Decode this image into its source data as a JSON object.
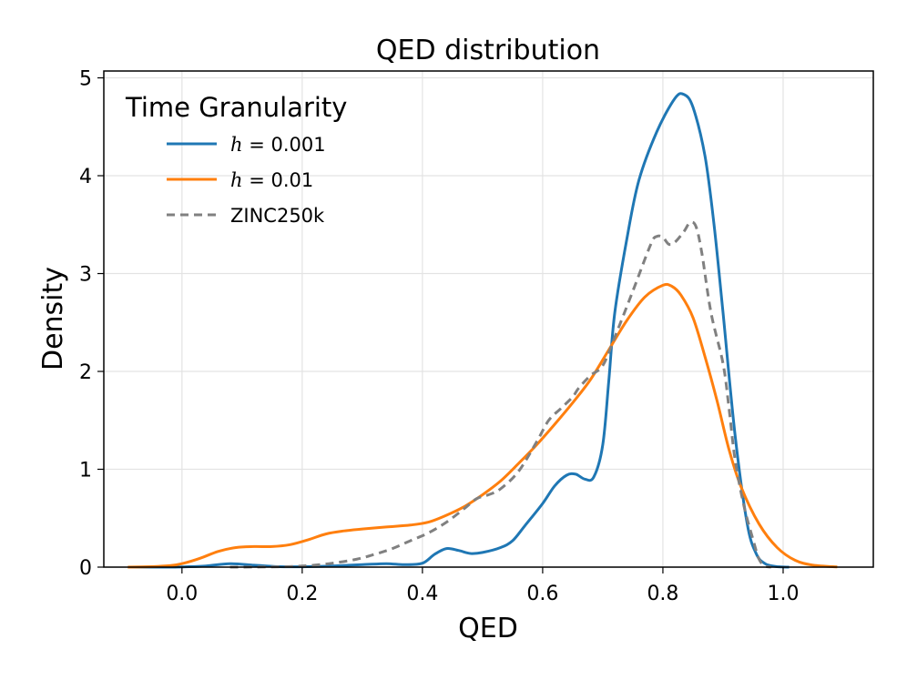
{
  "chart_data": {
    "type": "line",
    "title": "QED distribution",
    "xlabel": "QED",
    "ylabel": "Density",
    "xlim": [
      -0.13,
      1.15
    ],
    "ylim": [
      0,
      5.07
    ],
    "xticks": [
      0.0,
      0.2,
      0.4,
      0.6,
      0.8,
      1.0
    ],
    "xtick_labels": [
      "0.0",
      "0.2",
      "0.4",
      "0.6",
      "0.8",
      "1.0"
    ],
    "yticks": [
      0,
      1,
      2,
      3,
      4,
      5
    ],
    "ytick_labels": [
      "0",
      "1",
      "2",
      "3",
      "4",
      "5"
    ],
    "grid": true,
    "legend": {
      "title": "Time Granularity",
      "position": "top-left",
      "entries": [
        {
          "prefix": "h",
          "suffix": " = 0.001"
        },
        {
          "prefix": "h",
          "suffix": " = 0.01"
        },
        {
          "prefix": "",
          "suffix": "ZINC250k"
        }
      ]
    },
    "series": [
      {
        "name": "h = 0.001",
        "color": "#1f77b4",
        "dash": "",
        "points": [
          [
            -0.09,
            0
          ],
          [
            -0.02,
            0
          ],
          [
            0.0,
            0.003
          ],
          [
            0.04,
            0.012
          ],
          [
            0.08,
            0.035
          ],
          [
            0.12,
            0.02
          ],
          [
            0.16,
            0.005
          ],
          [
            0.2,
            0.004
          ],
          [
            0.25,
            0.012
          ],
          [
            0.3,
            0.025
          ],
          [
            0.34,
            0.035
          ],
          [
            0.37,
            0.025
          ],
          [
            0.4,
            0.04
          ],
          [
            0.42,
            0.13
          ],
          [
            0.44,
            0.19
          ],
          [
            0.46,
            0.17
          ],
          [
            0.48,
            0.14
          ],
          [
            0.5,
            0.15
          ],
          [
            0.53,
            0.2
          ],
          [
            0.55,
            0.27
          ],
          [
            0.57,
            0.42
          ],
          [
            0.6,
            0.65
          ],
          [
            0.62,
            0.83
          ],
          [
            0.64,
            0.94
          ],
          [
            0.655,
            0.95
          ],
          [
            0.67,
            0.9
          ],
          [
            0.685,
            0.92
          ],
          [
            0.7,
            1.25
          ],
          [
            0.71,
            1.9
          ],
          [
            0.72,
            2.6
          ],
          [
            0.74,
            3.35
          ],
          [
            0.76,
            3.95
          ],
          [
            0.79,
            4.45
          ],
          [
            0.82,
            4.79
          ],
          [
            0.835,
            4.83
          ],
          [
            0.85,
            4.7
          ],
          [
            0.87,
            4.2
          ],
          [
            0.885,
            3.5
          ],
          [
            0.9,
            2.6
          ],
          [
            0.92,
            1.35
          ],
          [
            0.94,
            0.45
          ],
          [
            0.955,
            0.14
          ],
          [
            0.97,
            0.035
          ],
          [
            0.99,
            0.005
          ],
          [
            1.01,
            0
          ]
        ]
      },
      {
        "name": "h = 0.01",
        "color": "#ff7f0e",
        "dash": "",
        "points": [
          [
            -0.09,
            0
          ],
          [
            -0.05,
            0.005
          ],
          [
            -0.02,
            0.015
          ],
          [
            0.0,
            0.035
          ],
          [
            0.03,
            0.09
          ],
          [
            0.06,
            0.16
          ],
          [
            0.09,
            0.2
          ],
          [
            0.12,
            0.21
          ],
          [
            0.15,
            0.21
          ],
          [
            0.18,
            0.23
          ],
          [
            0.21,
            0.28
          ],
          [
            0.24,
            0.34
          ],
          [
            0.27,
            0.37
          ],
          [
            0.3,
            0.39
          ],
          [
            0.34,
            0.41
          ],
          [
            0.38,
            0.43
          ],
          [
            0.41,
            0.46
          ],
          [
            0.44,
            0.53
          ],
          [
            0.47,
            0.62
          ],
          [
            0.5,
            0.74
          ],
          [
            0.53,
            0.88
          ],
          [
            0.56,
            1.06
          ],
          [
            0.59,
            1.25
          ],
          [
            0.62,
            1.46
          ],
          [
            0.65,
            1.68
          ],
          [
            0.68,
            1.92
          ],
          [
            0.71,
            2.22
          ],
          [
            0.74,
            2.52
          ],
          [
            0.77,
            2.76
          ],
          [
            0.8,
            2.88
          ],
          [
            0.815,
            2.87
          ],
          [
            0.83,
            2.78
          ],
          [
            0.85,
            2.55
          ],
          [
            0.87,
            2.15
          ],
          [
            0.89,
            1.7
          ],
          [
            0.91,
            1.2
          ],
          [
            0.93,
            0.82
          ],
          [
            0.96,
            0.44
          ],
          [
            0.99,
            0.2
          ],
          [
            1.02,
            0.07
          ],
          [
            1.05,
            0.02
          ],
          [
            1.09,
            0.002
          ]
        ]
      },
      {
        "name": "ZINC250k",
        "color": "#808080",
        "dash": "9,6",
        "points": [
          [
            0.08,
            0
          ],
          [
            0.14,
            0.002
          ],
          [
            0.18,
            0.006
          ],
          [
            0.21,
            0.015
          ],
          [
            0.25,
            0.04
          ],
          [
            0.29,
            0.08
          ],
          [
            0.32,
            0.13
          ],
          [
            0.35,
            0.19
          ],
          [
            0.38,
            0.27
          ],
          [
            0.41,
            0.35
          ],
          [
            0.44,
            0.46
          ],
          [
            0.47,
            0.6
          ],
          [
            0.49,
            0.7
          ],
          [
            0.51,
            0.74
          ],
          [
            0.53,
            0.8
          ],
          [
            0.56,
            0.98
          ],
          [
            0.59,
            1.28
          ],
          [
            0.61,
            1.5
          ],
          [
            0.63,
            1.62
          ],
          [
            0.65,
            1.74
          ],
          [
            0.66,
            1.83
          ],
          [
            0.68,
            1.96
          ],
          [
            0.7,
            2.06
          ],
          [
            0.72,
            2.35
          ],
          [
            0.75,
            2.82
          ],
          [
            0.78,
            3.3
          ],
          [
            0.79,
            3.38
          ],
          [
            0.8,
            3.37
          ],
          [
            0.81,
            3.3
          ],
          [
            0.82,
            3.32
          ],
          [
            0.835,
            3.43
          ],
          [
            0.845,
            3.52
          ],
          [
            0.855,
            3.48
          ],
          [
            0.865,
            3.2
          ],
          [
            0.88,
            2.6
          ],
          [
            0.9,
            2.08
          ],
          [
            0.91,
            1.62
          ],
          [
            0.92,
            1.1
          ],
          [
            0.935,
            0.62
          ],
          [
            0.95,
            0.28
          ],
          [
            0.96,
            0.08
          ],
          [
            0.97,
            0.01
          ],
          [
            0.98,
            0
          ]
        ]
      }
    ]
  }
}
